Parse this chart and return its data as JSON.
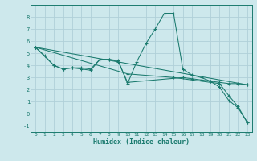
{
  "xlabel": "Humidex (Indice chaleur)",
  "background_color": "#cde8ec",
  "grid_color": "#b0d0d8",
  "line_color": "#1a7a6e",
  "xlim": [
    -0.5,
    23.5
  ],
  "ylim": [
    -1.5,
    9.0
  ],
  "xticks": [
    0,
    1,
    2,
    3,
    4,
    5,
    6,
    7,
    8,
    9,
    10,
    11,
    12,
    13,
    14,
    15,
    16,
    17,
    18,
    19,
    20,
    21,
    22,
    23
  ],
  "yticks": [
    -1,
    0,
    1,
    2,
    3,
    4,
    5,
    6,
    7,
    8
  ],
  "series": [
    {
      "x": [
        0,
        1,
        2,
        3,
        4,
        5,
        6,
        7,
        8,
        9,
        10,
        11,
        12,
        13,
        14,
        15,
        16,
        17,
        18,
        19,
        20,
        21,
        22,
        23
      ],
      "y": [
        5.5,
        4.8,
        4.0,
        3.7,
        3.8,
        3.8,
        3.7,
        4.5,
        4.5,
        4.4,
        2.5,
        4.3,
        5.8,
        7.0,
        8.3,
        8.3,
        3.7,
        3.2,
        3.0,
        2.7,
        2.2,
        1.1,
        0.5,
        -0.7
      ]
    },
    {
      "x": [
        0,
        2,
        3,
        4,
        5,
        6,
        7,
        8,
        9,
        10,
        16,
        17,
        18,
        19,
        20,
        21,
        22,
        23
      ],
      "y": [
        5.5,
        4.0,
        3.7,
        3.8,
        3.7,
        3.6,
        4.5,
        4.5,
        4.3,
        2.6,
        3.0,
        2.9,
        2.8,
        2.7,
        2.6,
        2.5,
        2.5,
        2.4
      ]
    },
    {
      "x": [
        0,
        23
      ],
      "y": [
        5.5,
        2.4
      ]
    },
    {
      "x": [
        0,
        10,
        15,
        20,
        21,
        22,
        23
      ],
      "y": [
        5.5,
        3.3,
        3.0,
        2.5,
        1.5,
        0.6,
        -0.7
      ]
    }
  ]
}
